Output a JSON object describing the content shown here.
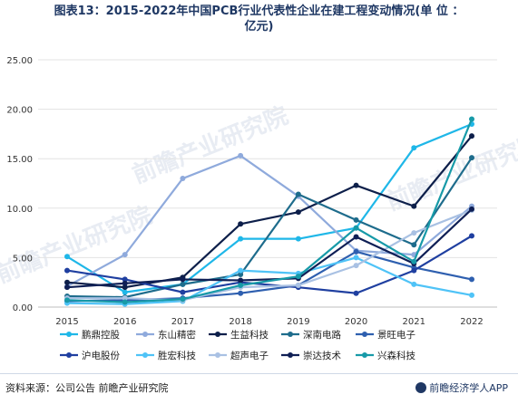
{
  "title_line1": "图表13：2015-2022年中国PCB行业代表性企业在建工程变动情况(单 位 ：",
  "title_line2": "亿元)",
  "source": "资料来源：公司公告 前瞻产业研究院",
  "brand": "前瞻经济学人APP",
  "watermark": "前瞻产业研究院",
  "chart_data": {
    "type": "line",
    "x": [
      "2015",
      "2016",
      "2017",
      "2018",
      "2019",
      "2020",
      "2021",
      "2022"
    ],
    "ylim": [
      0,
      25
    ],
    "yticks": [
      "0.00",
      "5.00",
      "10.00",
      "15.00",
      "20.00",
      "25.00"
    ],
    "legend_position": "bottom",
    "series": [
      {
        "name": "鹏鼎控股",
        "color": "#1fb7e8",
        "values": [
          5.1,
          1.5,
          2.3,
          6.9,
          6.9,
          8.0,
          16.1,
          18.5
        ]
      },
      {
        "name": "东山精密",
        "color": "#8faadc",
        "values": [
          2.1,
          5.3,
          13.0,
          15.3,
          11.2,
          5.7,
          5.3,
          10.2
        ]
      },
      {
        "name": "生益科技",
        "color": "#0d1f4a",
        "values": [
          2.5,
          2.0,
          3.0,
          8.4,
          9.6,
          12.3,
          10.2,
          17.3
        ]
      },
      {
        "name": "深南电路",
        "color": "#1e6c8c",
        "values": [
          1.1,
          1.0,
          2.3,
          3.3,
          11.4,
          8.8,
          6.3,
          15.1
        ]
      },
      {
        "name": "景旺电子",
        "color": "#2e5faf",
        "values": [
          0.6,
          0.7,
          0.9,
          1.4,
          2.2,
          5.6,
          4.0,
          2.8
        ]
      },
      {
        "name": "沪电股份",
        "color": "#1f3fa0",
        "values": [
          3.7,
          2.8,
          1.5,
          2.5,
          2.0,
          1.4,
          3.7,
          7.2
        ]
      },
      {
        "name": "胜宏科技",
        "color": "#4fc3f7",
        "values": [
          0.4,
          0.3,
          0.6,
          3.7,
          3.4,
          5.0,
          2.3,
          1.2
        ]
      },
      {
        "name": "超声电子",
        "color": "#a9c1e3",
        "values": [
          0.9,
          0.9,
          0.7,
          2.0,
          2.2,
          4.2,
          7.5,
          9.8
        ]
      },
      {
        "name": "崇达技术",
        "color": "#0f1f55",
        "values": [
          2.0,
          2.4,
          2.8,
          2.7,
          2.9,
          7.1,
          4.4,
          9.9
        ]
      },
      {
        "name": "兴森科技",
        "color": "#179aa8",
        "values": [
          0.7,
          0.5,
          0.8,
          2.2,
          3.1,
          8.0,
          4.6,
          19.0
        ]
      }
    ]
  }
}
